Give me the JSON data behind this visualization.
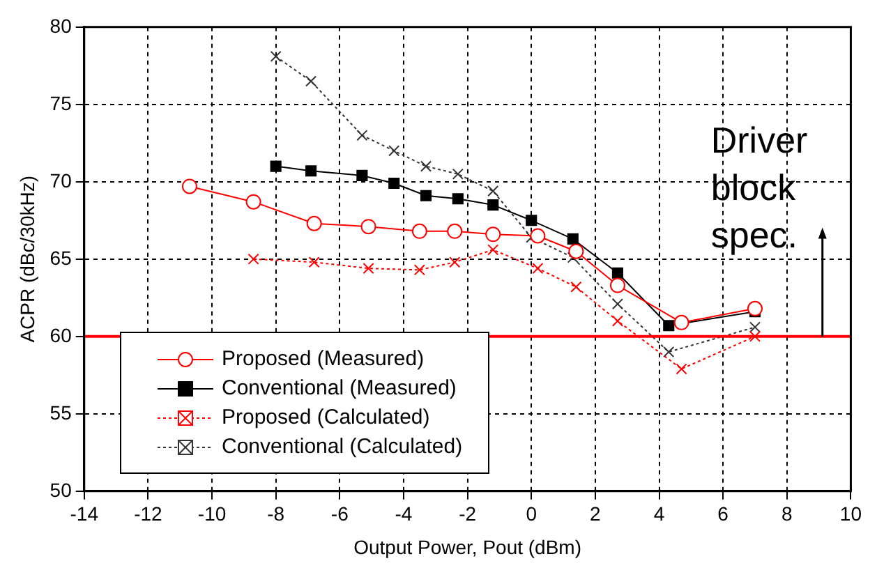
{
  "chart_data": {
    "type": "line",
    "xlabel": "Output Power, Pout (dBm)",
    "ylabel": "ACPR (dBc/30kHz)",
    "xlim": [
      -14,
      10
    ],
    "xticks": [
      -14,
      -12,
      -10,
      -8,
      -6,
      -4,
      -2,
      0,
      2,
      4,
      6,
      8,
      10
    ],
    "ylim": [
      50,
      80
    ],
    "yticks": [
      50,
      55,
      60,
      65,
      70,
      75,
      80
    ],
    "grid": true,
    "legend": "bottom left",
    "series": [
      {
        "name": "Proposed (Measured)",
        "color": "#ff0000",
        "marker": "circle",
        "line_style": "solid",
        "x": [
          -10.7,
          -8.7,
          -6.8,
          -5.1,
          -3.5,
          -2.4,
          -1.2,
          0.2,
          1.4,
          2.7,
          4.7,
          7
        ],
        "values": [
          69.7,
          68.7,
          67.3,
          67.1,
          66.8,
          66.8,
          66.6,
          66.5,
          65.5,
          63.3,
          60.9,
          61.8
        ]
      },
      {
        "name": "Conventional (Measured)",
        "color": "#000000",
        "marker": "square",
        "line_style": "solid",
        "x": [
          -8,
          -6.9,
          -5.3,
          -4.3,
          -3.3,
          -2.3,
          -1.2,
          0,
          1.3,
          2.7,
          4.3,
          7
        ],
        "values": [
          71,
          70.7,
          70.4,
          69.9,
          69.1,
          68.9,
          68.5,
          67.5,
          66.3,
          64.1,
          60.7,
          61.6
        ]
      },
      {
        "name": "Proposed (Calculated)",
        "color": "#ff0000",
        "marker": "cross",
        "line_style": "dotted",
        "x": [
          -8.7,
          -6.8,
          -5.1,
          -3.5,
          -2.4,
          -1.2,
          0.2,
          1.4,
          2.7,
          4.7,
          7
        ],
        "values": [
          65,
          64.8,
          64.4,
          64.3,
          64.8,
          65.6,
          64.4,
          63.2,
          61,
          57.9,
          60
        ]
      },
      {
        "name": "Conventional (Calculated)",
        "color": "#333333",
        "marker": "cross",
        "line_style": "dotted",
        "x": [
          -8,
          -6.9,
          -5.3,
          -4.3,
          -3.3,
          -2.3,
          -1.2,
          0,
          1.3,
          2.7,
          4.3,
          7
        ],
        "values": [
          78.1,
          76.5,
          73,
          72,
          71,
          70.5,
          69.4,
          66.4,
          65.1,
          62.1,
          59,
          60.6
        ]
      }
    ],
    "ref_lines": [
      {
        "axis": "y",
        "value": 60,
        "color": "#ff0000"
      }
    ],
    "annotations": [
      "Driver block spec."
    ]
  }
}
